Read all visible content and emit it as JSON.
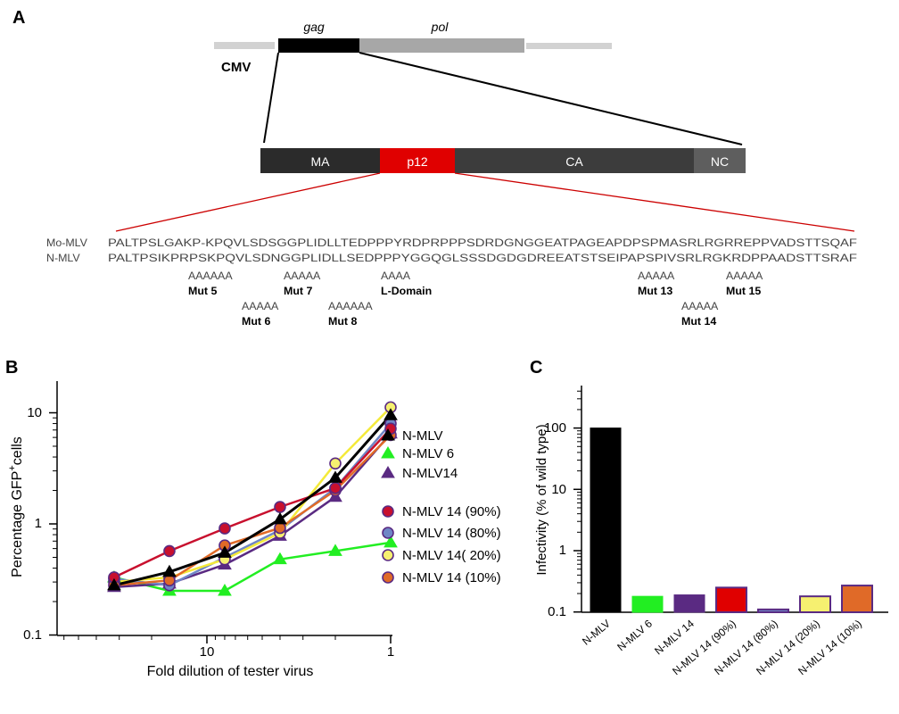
{
  "panelA": {
    "letter": "A",
    "cmv_label": "CMV",
    "gag_label": "gag",
    "pol_label": "pol",
    "domains": [
      {
        "label": "MA",
        "color": "#2b2b2b"
      },
      {
        "label": "p12",
        "color": "#e00000"
      },
      {
        "label": "CA",
        "color": "#3c3c3c"
      },
      {
        "label": "NC",
        "color": "#5e5e5e"
      }
    ],
    "sequences": [
      {
        "name": "Mo-MLV",
        "seq": "PALTPSLGAKP-KPQVLSDSGGPLIDLLTEDPPPYRDPRPPPSDRDGNGGEATPAGEAPDPSPMASRLRGRREPPVADSTTSQAF"
      },
      {
        "name": "N-MLV",
        "seq": "PALTPSIKPRPSKPQVLSDNGGPLIDLLSEDPPPYGGQGLSSSDGDGDREEATSTSEIPAPSPIVSRLRGKRDPPAADSTTSRAF"
      }
    ],
    "mutations": [
      {
        "aa": "AAAAAA",
        "name": "Mut 5"
      },
      {
        "aa": "AAAAA",
        "name": "Mut 6"
      },
      {
        "aa": "AAAAA",
        "name": "Mut 7"
      },
      {
        "aa": "AAAAAA",
        "name": "Mut 8"
      },
      {
        "aa": "AAAA",
        "name": "L-Domain"
      },
      {
        "aa": "AAAAA",
        "name": "Mut 13"
      },
      {
        "aa": "AAAAA",
        "name": "Mut 14"
      },
      {
        "aa": "AAAAA",
        "name": "Mut 15"
      }
    ]
  },
  "panelB": {
    "letter": "B",
    "ylabel_main": "Percentage GFP",
    "ylabel_sup": "+",
    "ylabel_end": "cells",
    "xlabel": "Fold dilution of tester virus",
    "x_ticks": [
      "10",
      "1"
    ],
    "y_ticks": [
      "10",
      "1",
      "0.1"
    ]
  },
  "panelC": {
    "letter": "C",
    "ylabel": "Infectivity (% of wild type)",
    "y_ticks": [
      "100",
      "10",
      "1",
      "0.1"
    ]
  },
  "chart_data": [
    {
      "type": "line",
      "xscale": "log",
      "yscale": "log",
      "xlabel": "Fold dilution of tester virus",
      "ylabel": "Percentage GFP+ cells",
      "xlim": [
        64,
        0.8
      ],
      "ylim": [
        0.1,
        20
      ],
      "x": [
        32,
        16,
        8,
        4,
        2,
        1
      ],
      "legend_position": "right",
      "series": [
        {
          "name": "N-MLV",
          "marker": "triangle",
          "color": "#000000",
          "edge": "#000000",
          "values": [
            0.28,
            0.37,
            0.55,
            1.1,
            2.6,
            9.5
          ]
        },
        {
          "name": "N-MLV 6",
          "marker": "triangle",
          "color": "#22ee22",
          "edge": "#22ee22",
          "values": [
            0.33,
            0.25,
            0.25,
            0.48,
            0.57,
            0.68
          ]
        },
        {
          "name": "N-MLV14",
          "marker": "triangle",
          "color": "#5a2a82",
          "edge": "#5a2a82",
          "values": [
            0.27,
            0.29,
            0.43,
            0.78,
            1.75,
            6.5
          ]
        },
        {
          "name": "N-MLV 14 (90%)",
          "marker": "circle",
          "color": "#c8102e",
          "edge": "#5a2a82",
          "values": [
            0.33,
            0.57,
            0.91,
            1.42,
            2.1,
            7.2
          ]
        },
        {
          "name": "N-MLV 14 (80%)",
          "marker": "circle",
          "color": "#6f86c6",
          "edge": "#5a2a82",
          "values": [
            0.32,
            0.28,
            0.5,
            0.88,
            2.1,
            8.0
          ]
        },
        {
          "name": "N-MLV 14( 20%)",
          "marker": "circle",
          "color": "#f6f070",
          "edge": "#5a2a82",
          "values": [
            0.3,
            0.33,
            0.48,
            0.83,
            3.5,
            11.2
          ]
        },
        {
          "name": "N-MLV 14 (10%)",
          "marker": "circle",
          "color": "#e06a28",
          "edge": "#5a2a82",
          "values": [
            0.28,
            0.31,
            0.64,
            0.92,
            2.0,
            6.3
          ]
        }
      ]
    },
    {
      "type": "bar",
      "yscale": "log",
      "ylabel": "Infectivity (% of wild type)",
      "ylim": [
        0.1,
        250
      ],
      "categories": [
        "N-MLV",
        "N-MLV 6",
        "N-MLV 14",
        "N-MLV 14 (90%)",
        "N-MLV 14 (80%)",
        "N-MLV 14 (20%)",
        "N-MLV 14 (10%)"
      ],
      "values": [
        100,
        0.18,
        0.19,
        0.25,
        0.11,
        0.18,
        0.27
      ],
      "colors": [
        "#000000",
        "#22ee22",
        "#5a2a82",
        "#e00000",
        "#6f86c6",
        "#f6f070",
        "#e06a28"
      ],
      "edge": "#5a2a82"
    }
  ]
}
